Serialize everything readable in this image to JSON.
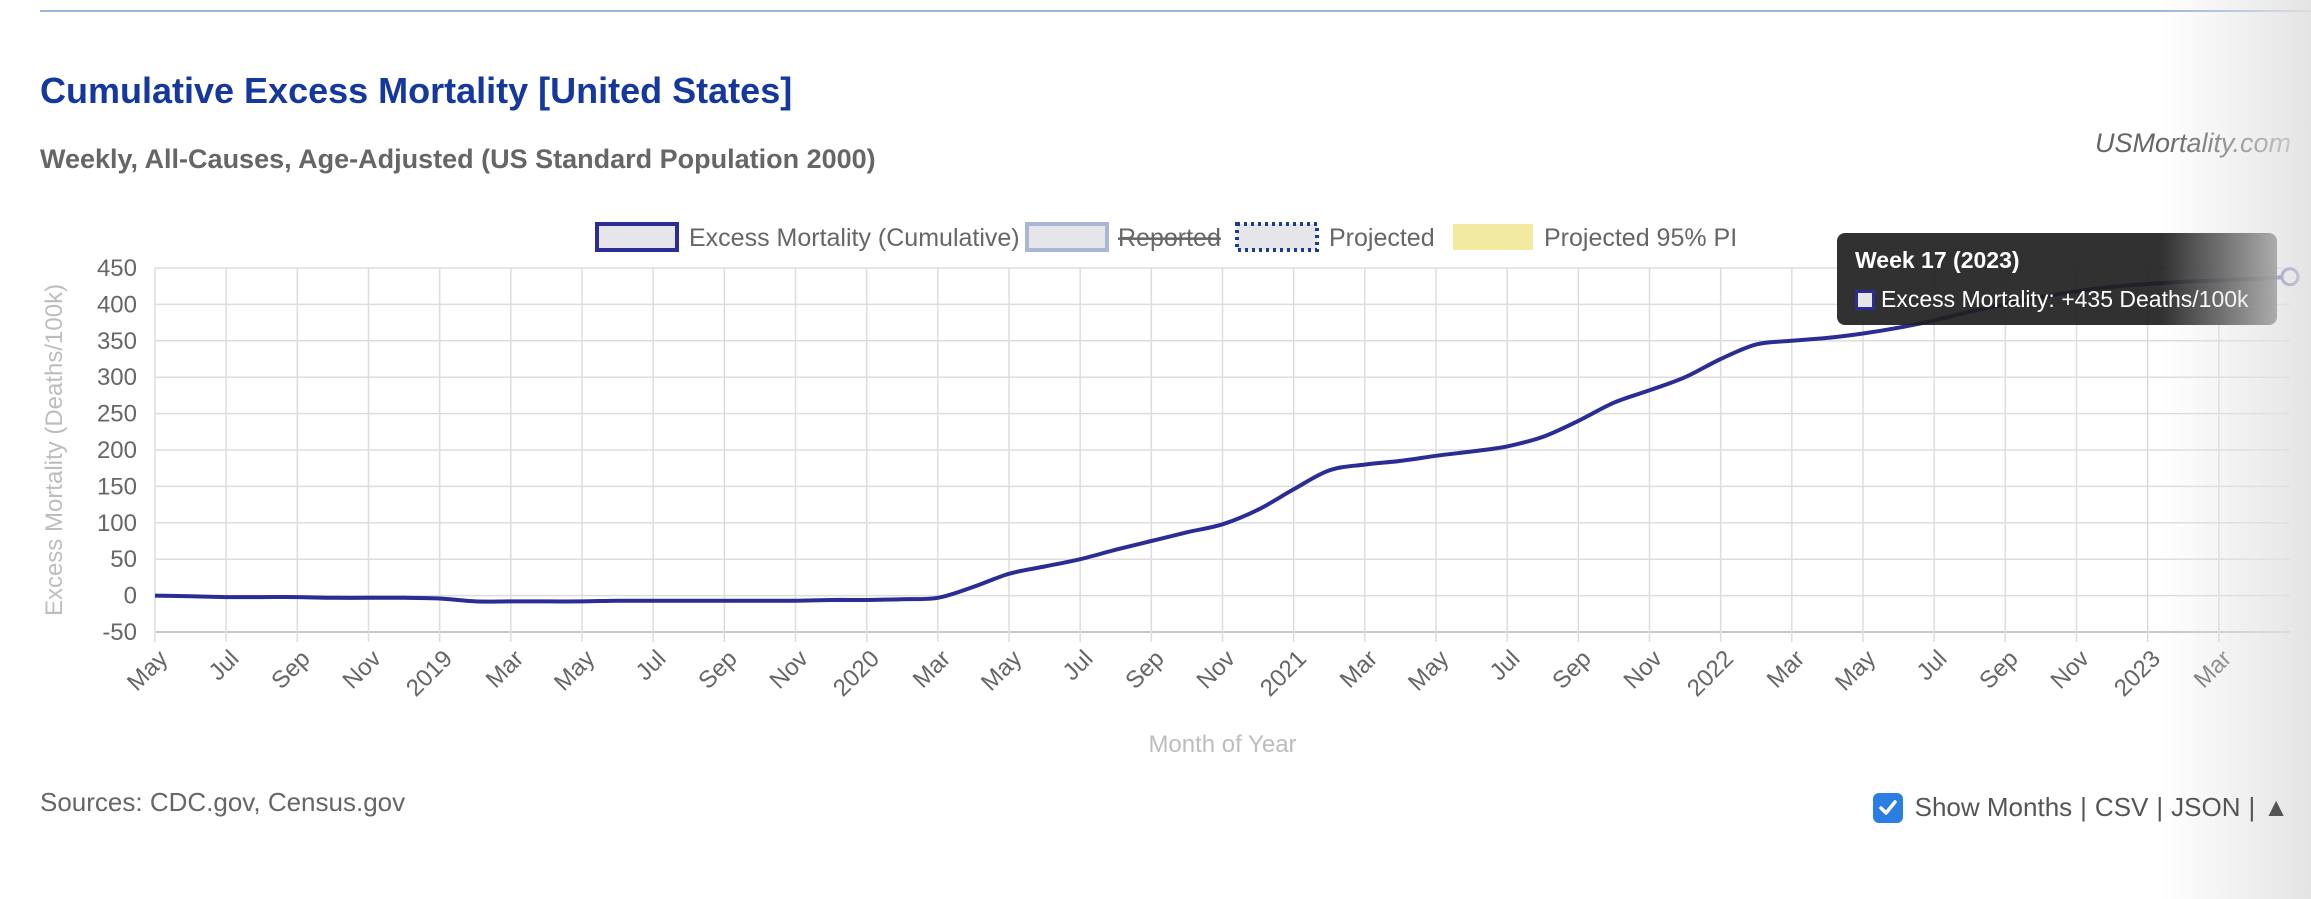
{
  "header": {
    "title": "Cumulative Excess Mortality [United States]",
    "subtitle": "Weekly, All-Causes, Age-Adjusted (US Standard Population 2000)",
    "site": "USMortality.com"
  },
  "footer": {
    "sources": "Sources: CDC.gov, Census.gov",
    "show_months_label": "Show Months",
    "show_months_checked": true,
    "csv_label": "CSV",
    "json_label": "JSON",
    "separator": "|",
    "up_arrow": "▲"
  },
  "tooltip": {
    "title": "Week 17 (2023)",
    "text": "Excess Mortality: +435 Deaths/100k"
  },
  "colors": {
    "title": "#15389c",
    "line": "#2c2d94",
    "reported_border": "#aab6d6",
    "projected_border": "#1c3d8f",
    "pi_fill": "#f2eaa0",
    "swatch_fill": "#e6e6ea",
    "tooltip_bg": "#202020",
    "checkbox": "#2a7de1"
  },
  "chart_data": {
    "type": "line",
    "title": "Cumulative Excess Mortality [United States]",
    "subtitle": "Weekly, All-Causes, Age-Adjusted (US Standard Population 2000)",
    "xlabel": "Month of Year",
    "ylabel": "Excess Mortality (Deaths/100k)",
    "ylim": [
      -50,
      450
    ],
    "yticks": [
      -50,
      0,
      50,
      100,
      150,
      200,
      250,
      300,
      350,
      400,
      450
    ],
    "x_tick_labels": [
      "May",
      "Jul",
      "Sep",
      "Nov",
      "2019",
      "Mar",
      "May",
      "Jul",
      "Sep",
      "Nov",
      "2020",
      "Mar",
      "May",
      "Jul",
      "Sep",
      "Nov",
      "2021",
      "Mar",
      "May",
      "Jul",
      "Sep",
      "Nov",
      "2022",
      "Mar",
      "May",
      "Jul",
      "Sep",
      "Nov",
      "2023",
      "Mar"
    ],
    "x_start": "2018-05",
    "x_end": "2023-05",
    "grid": true,
    "legend": {
      "placement": "top-center",
      "items": [
        {
          "label": "Excess Mortality (Cumulative)",
          "style": "cumulative"
        },
        {
          "label": "Reported",
          "style": "reported",
          "hidden": true
        },
        {
          "label": "Projected",
          "style": "projected"
        },
        {
          "label": "Projected 95% PI",
          "style": "pi"
        }
      ]
    },
    "series": [
      {
        "name": "Excess Mortality (Cumulative)",
        "x": [
          "2018-05",
          "2018-06",
          "2018-07",
          "2018-08",
          "2018-09",
          "2018-10",
          "2018-11",
          "2018-12",
          "2019-01",
          "2019-02",
          "2019-03",
          "2019-04",
          "2019-05",
          "2019-06",
          "2019-07",
          "2019-08",
          "2019-09",
          "2019-10",
          "2019-11",
          "2019-12",
          "2020-01",
          "2020-02",
          "2020-03",
          "2020-04",
          "2020-05",
          "2020-06",
          "2020-07",
          "2020-08",
          "2020-09",
          "2020-10",
          "2020-11",
          "2020-12",
          "2021-01",
          "2021-02",
          "2021-03",
          "2021-04",
          "2021-05",
          "2021-06",
          "2021-07",
          "2021-08",
          "2021-09",
          "2021-10",
          "2021-11",
          "2021-12",
          "2022-01",
          "2022-02",
          "2022-03",
          "2022-04",
          "2022-05",
          "2022-06",
          "2022-07",
          "2022-08",
          "2022-09",
          "2022-10",
          "2022-11",
          "2022-12",
          "2023-01",
          "2023-02",
          "2023-03",
          "2023-04",
          "2023-05"
        ],
        "values": [
          0,
          -1,
          -2,
          -2,
          -2,
          -3,
          -3,
          -3,
          -4,
          -8,
          -8,
          -8,
          -8,
          -7,
          -7,
          -7,
          -7,
          -7,
          -7,
          -6,
          -6,
          -5,
          -3,
          12,
          30,
          40,
          50,
          63,
          75,
          87,
          98,
          118,
          146,
          172,
          180,
          185,
          192,
          198,
          205,
          218,
          240,
          265,
          282,
          300,
          325,
          345,
          350,
          354,
          360,
          368,
          378,
          390,
          400,
          410,
          418,
          424,
          428,
          431,
          433,
          435,
          438
        ]
      }
    ]
  }
}
